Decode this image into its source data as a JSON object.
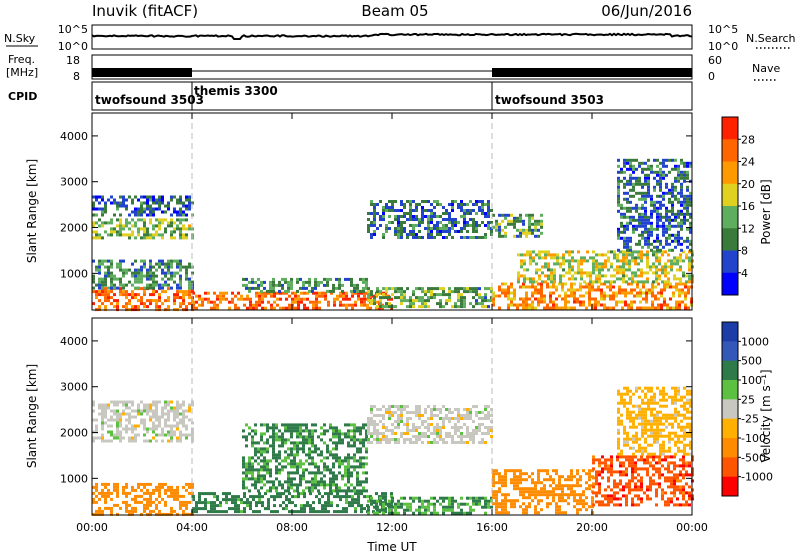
{
  "header": {
    "station": "Inuvik (fitACF)",
    "beam": "Beam 05",
    "date": "06/Jun/2016"
  },
  "sky_panel": {
    "left_label": "N.Sky",
    "right_label": "N.Search",
    "left_ticks": [
      "10^5",
      "10^0"
    ],
    "right_ticks": [
      "10^5",
      "10^0"
    ]
  },
  "freq_panel": {
    "left_label_line1": "Freq.",
    "left_label_line2": "[MHz]",
    "left_ticks": [
      "18",
      "8"
    ],
    "right_ticks": [
      "60",
      "0"
    ],
    "right_label": "Nave"
  },
  "cpid_panel": {
    "label": "CPID",
    "segments": [
      {
        "name": "twofsound 3503",
        "start_hour": 0,
        "end_hour": 4
      },
      {
        "name": "themis 3300",
        "start_hour": 4,
        "end_hour": 16
      },
      {
        "name": "twofsound 3503",
        "start_hour": 16,
        "end_hour": 24
      }
    ]
  },
  "colors": {
    "power_scale": [
      "#0000ff",
      "#2244cc",
      "#3a7a3a",
      "#5fae5f",
      "#e0d020",
      "#ff9900",
      "#ff6600",
      "#ff2200"
    ],
    "velocity_scale": [
      "#1c3ca8",
      "#3358b8",
      "#2e7a48",
      "#5cc040",
      "#c8c8c0",
      "#ffb000",
      "#ff8c00",
      "#ff5500",
      "#ff0000"
    ]
  },
  "chart_data": [
    {
      "type": "heatmap",
      "title": "Power",
      "xlabel": "",
      "ylabel": "Slant Range [km]",
      "xlim": [
        0,
        24
      ],
      "ylim": [
        200,
        4500
      ],
      "x_ticks": [
        0,
        4,
        8,
        12,
        16,
        20,
        24
      ],
      "y_ticks": [
        1000,
        2000,
        3000,
        4000
      ],
      "colorbar": {
        "label": "Power [dB]",
        "ticks": [
          "4",
          "8",
          "12",
          "16",
          "20",
          "24",
          "28"
        ],
        "range": [
          0,
          30
        ]
      },
      "mode_change_hours": [
        4,
        16
      ],
      "regions": [
        {
          "x": [
            0,
            4
          ],
          "y": [
            200,
            700
          ],
          "value": 24
        },
        {
          "x": [
            0,
            4
          ],
          "y": [
            700,
            1300
          ],
          "value": 10
        },
        {
          "x": [
            0,
            4
          ],
          "y": [
            1800,
            2200
          ],
          "value": 14
        },
        {
          "x": [
            0,
            4
          ],
          "y": [
            2300,
            2700
          ],
          "value": 7
        },
        {
          "x": [
            4,
            12
          ],
          "y": [
            250,
            600
          ],
          "value": 24
        },
        {
          "x": [
            6,
            11
          ],
          "y": [
            600,
            900
          ],
          "value": 10
        },
        {
          "x": [
            11,
            16
          ],
          "y": [
            1800,
            2600
          ],
          "value": 8
        },
        {
          "x": [
            11,
            16
          ],
          "y": [
            250,
            700
          ],
          "value": 12
        },
        {
          "x": [
            16,
            24
          ],
          "y": [
            250,
            800
          ],
          "value": 22
        },
        {
          "x": [
            17,
            24
          ],
          "y": [
            800,
            1500
          ],
          "value": 16
        },
        {
          "x": [
            16,
            18
          ],
          "y": [
            1800,
            2300
          ],
          "value": 12
        },
        {
          "x": [
            21,
            24
          ],
          "y": [
            1500,
            3500
          ],
          "value": 8
        }
      ]
    },
    {
      "type": "heatmap",
      "title": "Velocity",
      "xlabel": "Time UT",
      "ylabel": "Slant Range [km]",
      "xlim": [
        0,
        24
      ],
      "ylim": [
        200,
        4500
      ],
      "x_ticks": [
        0,
        4,
        8,
        12,
        16,
        20,
        24
      ],
      "x_tick_labels": [
        "00:00",
        "04:00",
        "08:00",
        "12:00",
        "16:00",
        "20:00",
        "00:00"
      ],
      "y_ticks": [
        1000,
        2000,
        3000,
        4000
      ],
      "colorbar": {
        "label": "Velocity [m s⁻¹]",
        "ticks": [
          "1000",
          "500",
          "100",
          "25",
          "-25",
          "-100",
          "-500",
          "-1000"
        ]
      },
      "mode_change_hours": [
        4,
        16
      ],
      "regions": [
        {
          "x": [
            0,
            4
          ],
          "y": [
            200,
            900
          ],
          "value": -300
        },
        {
          "x": [
            0,
            4
          ],
          "y": [
            1800,
            2700
          ],
          "value": 0
        },
        {
          "x": [
            4,
            12
          ],
          "y": [
            250,
            700
          ],
          "value": 150
        },
        {
          "x": [
            6,
            11
          ],
          "y": [
            700,
            2200
          ],
          "value": 120
        },
        {
          "x": [
            11,
            16
          ],
          "y": [
            1800,
            2600
          ],
          "value": 0
        },
        {
          "x": [
            11,
            16
          ],
          "y": [
            250,
            600
          ],
          "value": 100
        },
        {
          "x": [
            16,
            20
          ],
          "y": [
            250,
            1200
          ],
          "value": -200
        },
        {
          "x": [
            20,
            24
          ],
          "y": [
            400,
            1500
          ],
          "value": -800
        },
        {
          "x": [
            21,
            24
          ],
          "y": [
            1500,
            3000
          ],
          "value": -50
        }
      ]
    }
  ]
}
